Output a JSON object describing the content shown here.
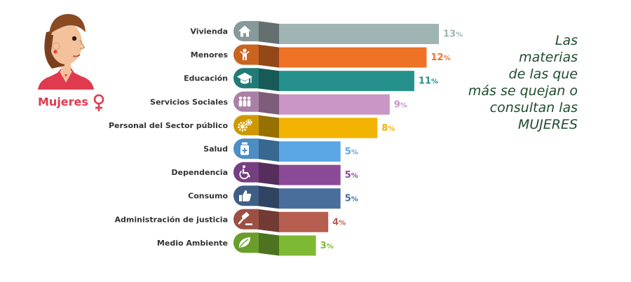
{
  "chart_data": {
    "type": "bar",
    "orientation": "horizontal",
    "categories": [
      "Vivienda",
      "Menores",
      "Educación",
      "Servicios Sociales",
      "Personal del Sector público",
      "Salud",
      "Dependencia",
      "Consumo",
      "Administración de justicia",
      "Medio Ambiente"
    ],
    "values": [
      13,
      12,
      11,
      9,
      8,
      5,
      5,
      5,
      4,
      3
    ],
    "value_labels": [
      "13",
      "12",
      "11",
      "9",
      "8",
      "5",
      "5",
      "5",
      "4",
      "3"
    ],
    "unit": "%",
    "colors": [
      "#9fb4b3",
      "#ee7326",
      "#26918c",
      "#c996c5",
      "#f2b400",
      "#5ba7e6",
      "#8b4a98",
      "#4a6e9c",
      "#b75e50",
      "#7eb934"
    ],
    "icons": [
      "house-icon",
      "child-icon",
      "graduation-cap-icon",
      "people-group-icon",
      "gears-icon",
      "medicine-bottle-icon",
      "wheelchair-icon",
      "thumbs-up-icon",
      "gavel-icon",
      "leaf-icon"
    ],
    "xlim": [
      0,
      13
    ],
    "grid": false,
    "legend": "none"
  },
  "headline": [
    "Las",
    "materias",
    "de las que",
    "más se quejan o",
    "consultan las",
    "MUJERES"
  ],
  "gender": {
    "label": "Mujeres",
    "symbol_icon": "female-symbol-icon",
    "avatar_icon": "woman-avatar-icon",
    "accent": "#e03a4e"
  },
  "headline_color": "#1f4d2e"
}
